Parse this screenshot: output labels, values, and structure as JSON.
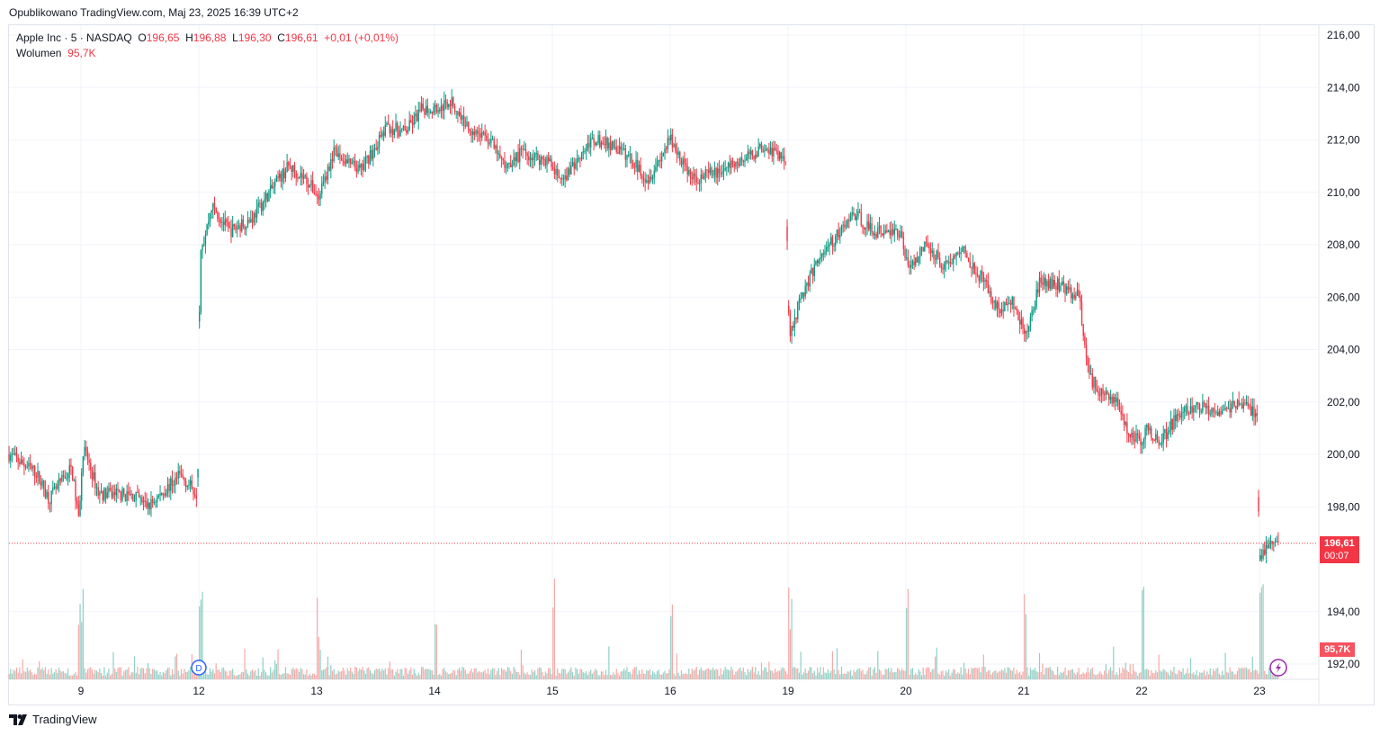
{
  "header": {
    "published": "Opublikowano TradingView.com, Maj 23, 2025 16:39 UTC+2"
  },
  "legend": {
    "symbol": "Apple Inc · 5 · NASDAQ",
    "o_label": "O",
    "o": "196,65",
    "h_label": "H",
    "h": "196,88",
    "l_label": "L",
    "l": "196,30",
    "c_label": "C",
    "c": "196,61",
    "change": "+0,01 (+0,01%)",
    "volume_label": "Wolumen",
    "volume": "95,7K"
  },
  "price_tag": {
    "price": "196,61",
    "countdown": "00:07"
  },
  "volume_tag": "95,7K",
  "brand": "TradingView",
  "colors": {
    "up": "#089981",
    "down": "#f23645",
    "vol_up": "#8fd0c5",
    "vol_down": "#f7a9a7"
  },
  "chart_data": {
    "type": "candlestick",
    "title": "Apple Inc · 5 · NASDAQ",
    "ylim": [
      191.5,
      216.5
    ],
    "yticks": [
      "216,00",
      "214,00",
      "212,00",
      "210,00",
      "208,00",
      "206,00",
      "204,00",
      "202,00",
      "200,00",
      "198,00",
      "194,00",
      "192,00"
    ],
    "ytick_values": [
      216,
      214,
      212,
      210,
      208,
      206,
      204,
      202,
      200,
      198,
      194,
      192
    ],
    "xticks": [
      "9",
      "12",
      "13",
      "14",
      "15",
      "16",
      "19",
      "20",
      "21",
      "22",
      "23"
    ],
    "xlabel": "",
    "ylabel": "",
    "last_price": 196.61,
    "price_path_day_index_vs_price": [
      [
        -0.61,
        200.0
      ],
      [
        -0.38,
        199.3
      ],
      [
        -0.27,
        198.3
      ],
      [
        -0.08,
        199.5
      ],
      [
        -0.02,
        197.5
      ],
      [
        0.02,
        200.3
      ],
      [
        0.15,
        198.5
      ],
      [
        0.27,
        198.5
      ],
      [
        0.46,
        198.4
      ],
      [
        0.57,
        198.0
      ],
      [
        0.84,
        199.2
      ],
      [
        0.99,
        198.5
      ],
      [
        1.01,
        207.5
      ],
      [
        1.11,
        209.5
      ],
      [
        1.26,
        208.5
      ],
      [
        1.45,
        209.0
      ],
      [
        1.6,
        210.0
      ],
      [
        1.76,
        211.0
      ],
      [
        1.91,
        210.5
      ],
      [
        2.02,
        209.8
      ],
      [
        2.14,
        211.5
      ],
      [
        2.37,
        210.8
      ],
      [
        2.6,
        212.5
      ],
      [
        2.75,
        212.3
      ],
      [
        2.9,
        213.2
      ],
      [
        3.05,
        213.2
      ],
      [
        3.13,
        213.5
      ],
      [
        3.28,
        212.5
      ],
      [
        3.47,
        212.0
      ],
      [
        3.59,
        211.0
      ],
      [
        3.74,
        211.5
      ],
      [
        3.97,
        211.2
      ],
      [
        4.08,
        210.3
      ],
      [
        4.24,
        211.5
      ],
      [
        4.35,
        212.0
      ],
      [
        4.5,
        211.8
      ],
      [
        4.66,
        211.3
      ],
      [
        4.81,
        210.5
      ],
      [
        5.0,
        212.0
      ],
      [
        5.19,
        210.5
      ],
      [
        5.42,
        210.8
      ],
      [
        5.65,
        211.3
      ],
      [
        5.8,
        211.8
      ],
      [
        5.98,
        211.2
      ],
      [
        6.01,
        204.5
      ],
      [
        6.11,
        206.0
      ],
      [
        6.26,
        207.5
      ],
      [
        6.41,
        208.3
      ],
      [
        6.56,
        209.2
      ],
      [
        6.72,
        208.5
      ],
      [
        6.95,
        208.5
      ],
      [
        7.02,
        207.2
      ],
      [
        7.18,
        208.0
      ],
      [
        7.33,
        207.2
      ],
      [
        7.48,
        207.8
      ],
      [
        7.63,
        206.8
      ],
      [
        7.79,
        205.5
      ],
      [
        7.9,
        205.8
      ],
      [
        8.02,
        204.5
      ],
      [
        8.13,
        206.5
      ],
      [
        8.28,
        206.5
      ],
      [
        8.47,
        206.0
      ],
      [
        8.55,
        203.0
      ],
      [
        8.63,
        202.5
      ],
      [
        8.78,
        202.0
      ],
      [
        8.89,
        200.8
      ],
      [
        9.0,
        200.5
      ],
      [
        9.05,
        201.0
      ],
      [
        9.16,
        200.5
      ],
      [
        9.31,
        201.5
      ],
      [
        9.47,
        201.8
      ],
      [
        9.69,
        201.7
      ],
      [
        9.85,
        202.0
      ],
      [
        9.98,
        201.5
      ],
      [
        10.0,
        196.0
      ],
      [
        10.08,
        196.5
      ],
      [
        10.15,
        196.61
      ]
    ]
  }
}
